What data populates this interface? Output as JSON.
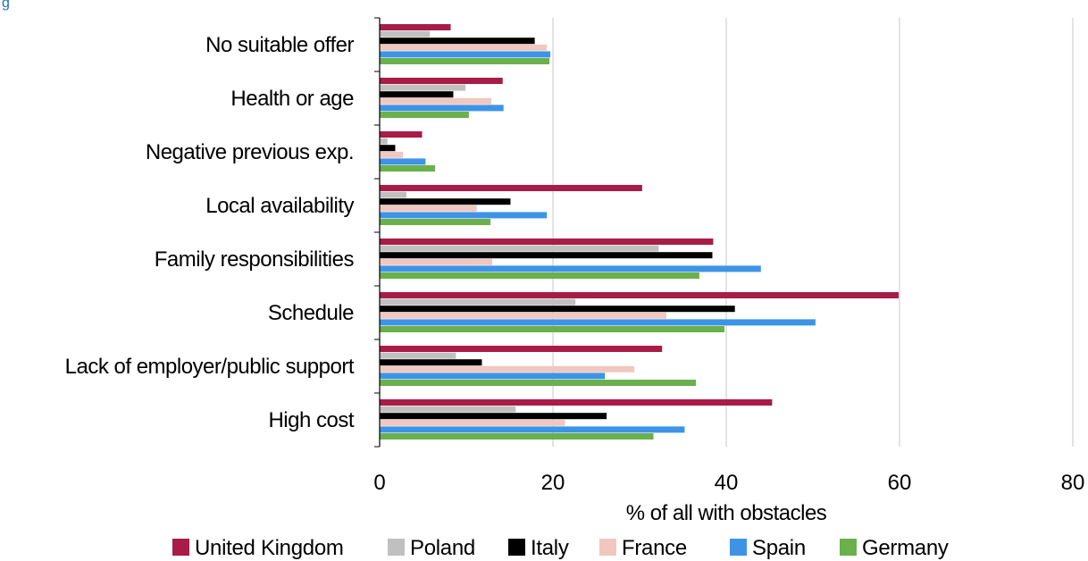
{
  "chart_data": {
    "type": "bar",
    "orientation": "horizontal",
    "categories": [
      "No suitable offer",
      "Health or age",
      "Negative previous exp.",
      "Local availability",
      "Family responsibilities",
      "Schedule",
      "Lack of employer/public support",
      "High cost"
    ],
    "series": [
      {
        "name": "United Kingdom",
        "color": "#a81c48",
        "values": [
          8.2,
          14.2,
          4.9,
          30.3,
          38.5,
          59.9,
          32.6,
          45.3
        ]
      },
      {
        "name": "Poland",
        "color": "#c0c0c0",
        "values": [
          5.8,
          9.9,
          0.9,
          3.1,
          32.2,
          22.6,
          8.8,
          15.7
        ]
      },
      {
        "name": "Italy",
        "color": "#000000",
        "values": [
          17.9,
          8.5,
          1.8,
          15.1,
          38.4,
          41.0,
          11.8,
          26.2
        ]
      },
      {
        "name": "France",
        "color": "#f0c8c0",
        "values": [
          19.3,
          12.9,
          2.7,
          11.2,
          13.0,
          33.1,
          29.4,
          21.4
        ]
      },
      {
        "name": "Spain",
        "color": "#3d94e6",
        "values": [
          19.7,
          14.3,
          5.3,
          19.3,
          44.0,
          50.3,
          26.0,
          35.2
        ]
      },
      {
        "name": "Germany",
        "color": "#6ab04c",
        "values": [
          19.6,
          10.3,
          6.4,
          12.8,
          36.9,
          39.8,
          36.5,
          31.6
        ]
      }
    ],
    "xlabel": "% of all with obstacles",
    "xlim": [
      0,
      80
    ],
    "xticks": [
      0,
      20,
      40,
      60,
      80
    ],
    "grid": "vertical",
    "legend": "bottom",
    "top_text": "g                                                                                                          , y"
  }
}
